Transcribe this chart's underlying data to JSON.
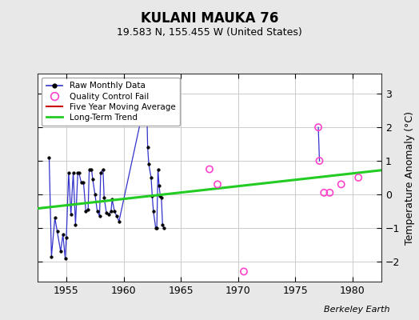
{
  "title": "KULANI MAUKA 76",
  "subtitle": "19.583 N, 155.455 W (United States)",
  "ylabel": "Temperature Anomaly (°C)",
  "xlabel_credit": "Berkeley Earth",
  "xlim": [
    1952.5,
    1982.5
  ],
  "ylim": [
    -2.6,
    3.6
  ],
  "yticks": [
    -2,
    -1,
    0,
    1,
    2,
    3
  ],
  "xticks": [
    1955,
    1960,
    1965,
    1970,
    1975,
    1980
  ],
  "bg_color": "#e8e8e8",
  "plot_bg_color": "#ffffff",
  "raw_monthly_x": [
    1953.5,
    1953.7,
    1954.0,
    1954.2,
    1954.5,
    1954.7,
    1954.9,
    1955.0,
    1955.2,
    1955.4,
    1955.6,
    1955.8,
    1956.0,
    1956.1,
    1956.3,
    1956.5,
    1956.7,
    1956.9,
    1957.0,
    1957.2,
    1957.3,
    1957.5,
    1957.7,
    1957.9,
    1958.0,
    1958.2,
    1958.3,
    1958.5,
    1958.7,
    1958.9,
    1959.0,
    1959.2,
    1959.4,
    1959.6,
    1962.0,
    1962.1,
    1962.2,
    1962.4,
    1962.5,
    1962.6,
    1962.8,
    1962.9,
    1963.0,
    1963.1,
    1963.2,
    1963.3,
    1963.4,
    1963.5
  ],
  "raw_monthly_y": [
    1.1,
    -1.85,
    -0.7,
    -1.1,
    -1.7,
    -1.2,
    -1.9,
    -1.3,
    0.65,
    -0.6,
    0.65,
    -0.9,
    0.65,
    0.65,
    0.35,
    0.35,
    -0.5,
    -0.45,
    0.75,
    0.75,
    0.45,
    0.0,
    -0.5,
    -0.65,
    0.65,
    0.75,
    -0.1,
    -0.55,
    -0.6,
    -0.5,
    -0.15,
    -0.5,
    -0.65,
    -0.8,
    3.0,
    1.4,
    0.9,
    0.5,
    -0.05,
    -0.5,
    -1.0,
    -1.0,
    0.75,
    0.25,
    -0.05,
    -0.1,
    -0.9,
    -1.0
  ],
  "qc_fail_x": [
    1967.5,
    1968.2,
    1970.5,
    1977.0,
    1977.1,
    1977.5,
    1978.0,
    1979.0,
    1980.5
  ],
  "qc_fail_y": [
    0.75,
    0.3,
    -2.3,
    2.0,
    1.0,
    0.05,
    0.05,
    0.3,
    0.5
  ],
  "qc_line_x": [
    1977.1,
    1977.0
  ],
  "qc_line_y": [
    1.0,
    2.0
  ],
  "trend_x": [
    1952.5,
    1982.5
  ],
  "trend_y": [
    -0.42,
    0.72
  ],
  "raw_color": "#3333cc",
  "qc_color": "#ff44cc",
  "trend_color": "#22cc22",
  "ma_color": "#cc0000",
  "dot_color": "#000000",
  "grid_color": "#cccccc"
}
